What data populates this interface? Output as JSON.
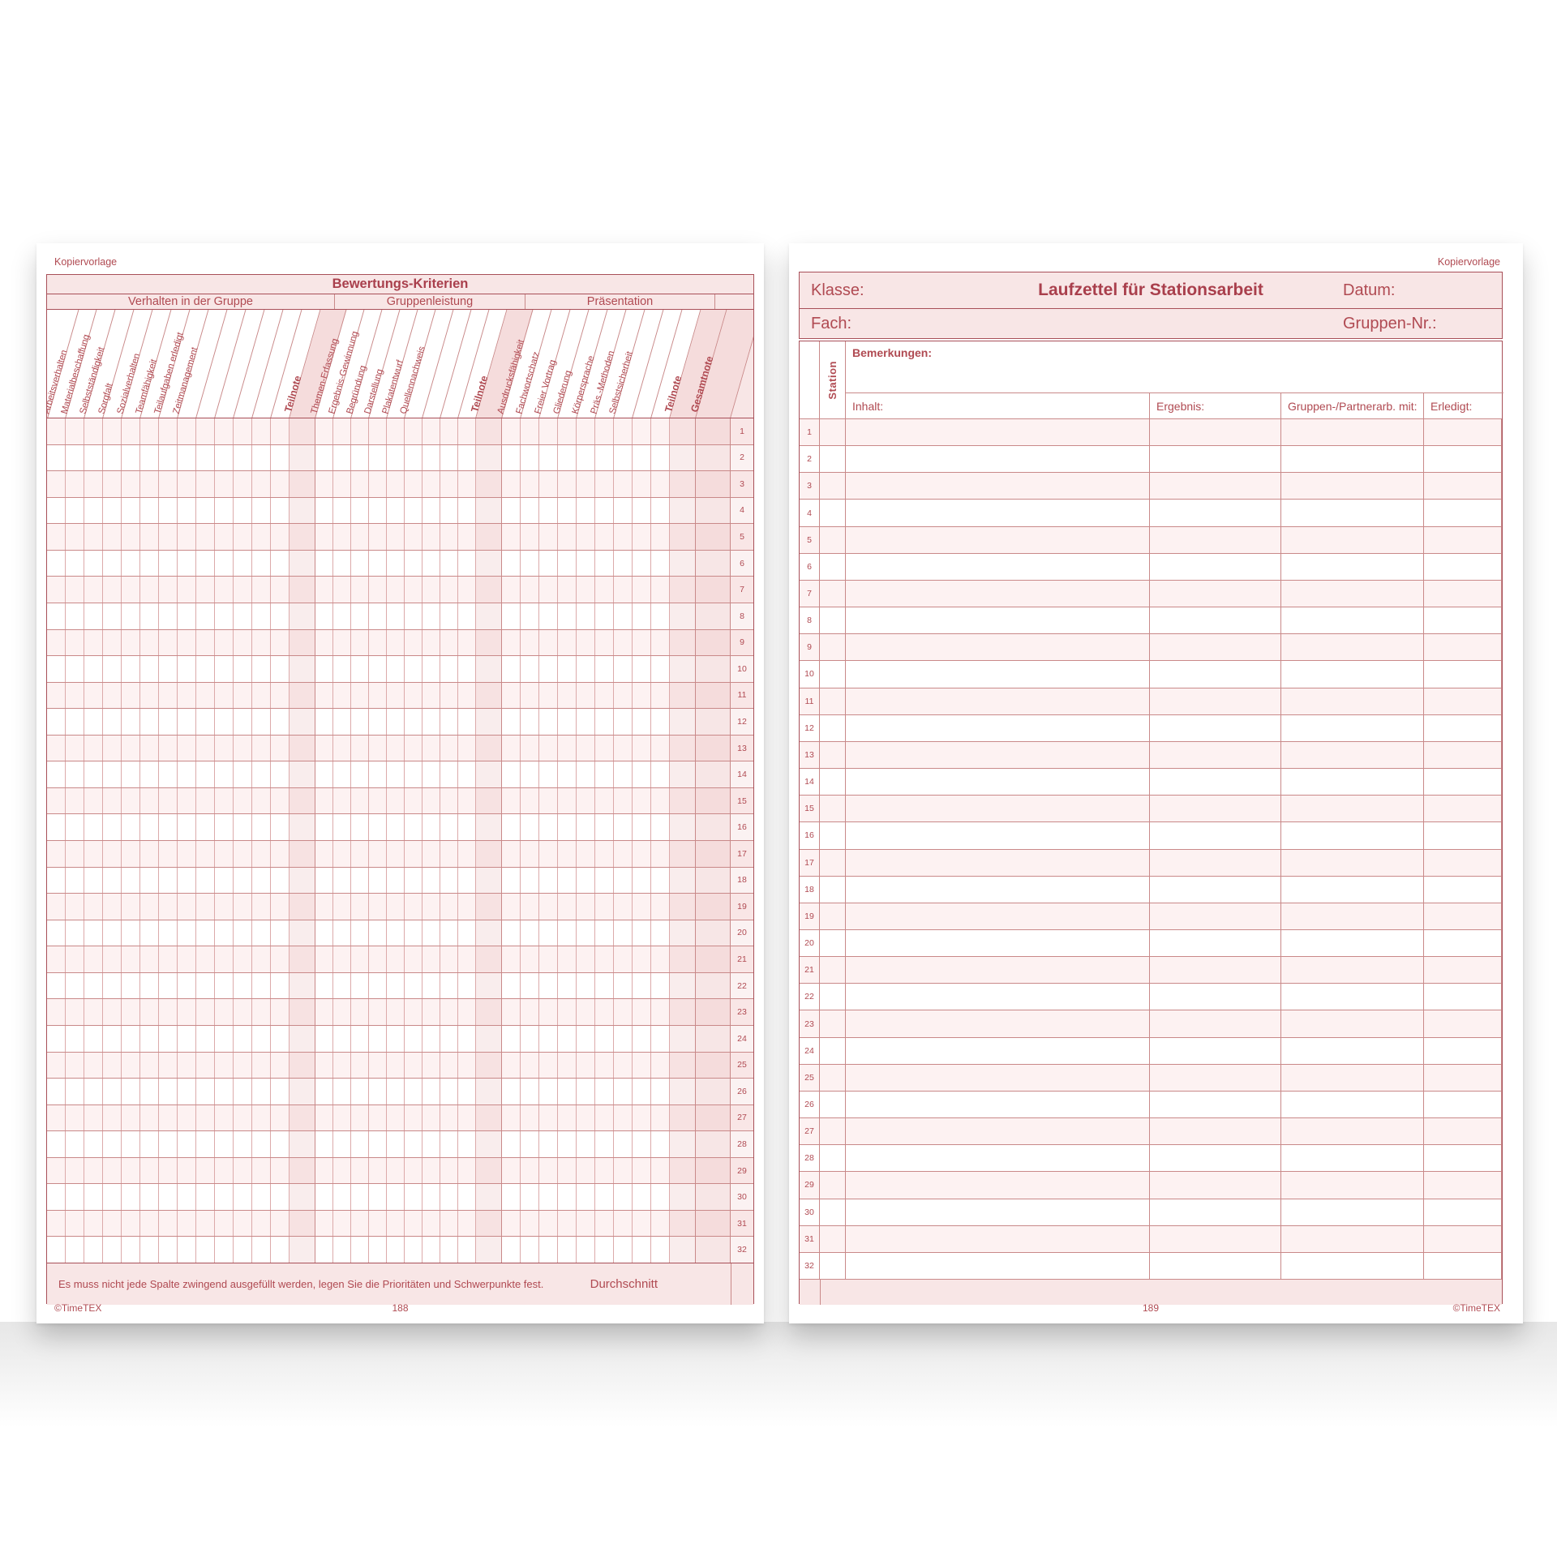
{
  "colors": {
    "ink": "#b04a52",
    "accent": "#a93f4c",
    "grid_line": "#c98989",
    "header_band": "#f8e6e6",
    "shaded_column": "#f5dcdc",
    "row_stripe": "#fdf2f2"
  },
  "left_page": {
    "corner_label": "Kopiervorlage",
    "table_title": "Bewertungs-Kriterien",
    "groups": [
      {
        "label": "Verhalten in der Gruppe",
        "criteria": [
          "Arbeitsverhalten",
          "Materialbeschaffung",
          "Selbstständigkeit",
          "Sorgfalt",
          "Sozialverhalten",
          "Teamfähigkeit",
          "Teilaufgaben erledigt",
          "Zeitmanagement"
        ],
        "empty_columns": 5,
        "subtotal_label": "Teilnote"
      },
      {
        "label": "Gruppenleistung",
        "criteria": [
          "Themen-Erfassung",
          "Ergebnis-Gewinnung",
          "Begründung",
          "Darstellung",
          "Plakatentwurf",
          "Quellennachweis"
        ],
        "empty_columns": 3,
        "subtotal_label": "Teilnote"
      },
      {
        "label": "Präsentation",
        "criteria": [
          "Ausdrucksfähigkeit",
          "Fachwortschatz",
          "Freier Vortrag",
          "Gliederung",
          "Körpersprache",
          "Präs.-Methoden",
          "Selbstsicherheit"
        ],
        "empty_columns": 2,
        "subtotal_label": "Teilnote"
      }
    ],
    "total_label": "Gesamtnote",
    "row_numbers": [
      1,
      2,
      3,
      4,
      5,
      6,
      7,
      8,
      9,
      10,
      11,
      12,
      13,
      14,
      15,
      16,
      17,
      18,
      19,
      20,
      21,
      22,
      23,
      24,
      25,
      26,
      27,
      28,
      29,
      30,
      31,
      32
    ],
    "footer_note": "Es muss nicht jede Spalte zwingend ausgefüllt werden, legen Sie die Prioritäten und Schwerpunkte fest.",
    "average_label": "Durchschnitt",
    "copyright": "©TimeTEX",
    "page_number": "188"
  },
  "right_page": {
    "corner_label": "Kopiervorlage",
    "class_label": "Klasse:",
    "title": "Laufzettel für Stationsarbeit",
    "date_label": "Datum:",
    "subject_label": "Fach:",
    "group_number_label": "Gruppen-Nr.:",
    "station_label": "Station",
    "remarks_label": "Bemerkungen:",
    "columns": [
      "Inhalt:",
      "Ergebnis:",
      "Gruppen-/Partnerarb. mit:",
      "Erledigt:"
    ],
    "row_numbers": [
      1,
      2,
      3,
      4,
      5,
      6,
      7,
      8,
      9,
      10,
      11,
      12,
      13,
      14,
      15,
      16,
      17,
      18,
      19,
      20,
      21,
      22,
      23,
      24,
      25,
      26,
      27,
      28,
      29,
      30,
      31,
      32
    ],
    "page_number": "189",
    "copyright": "©TimeTEX"
  }
}
